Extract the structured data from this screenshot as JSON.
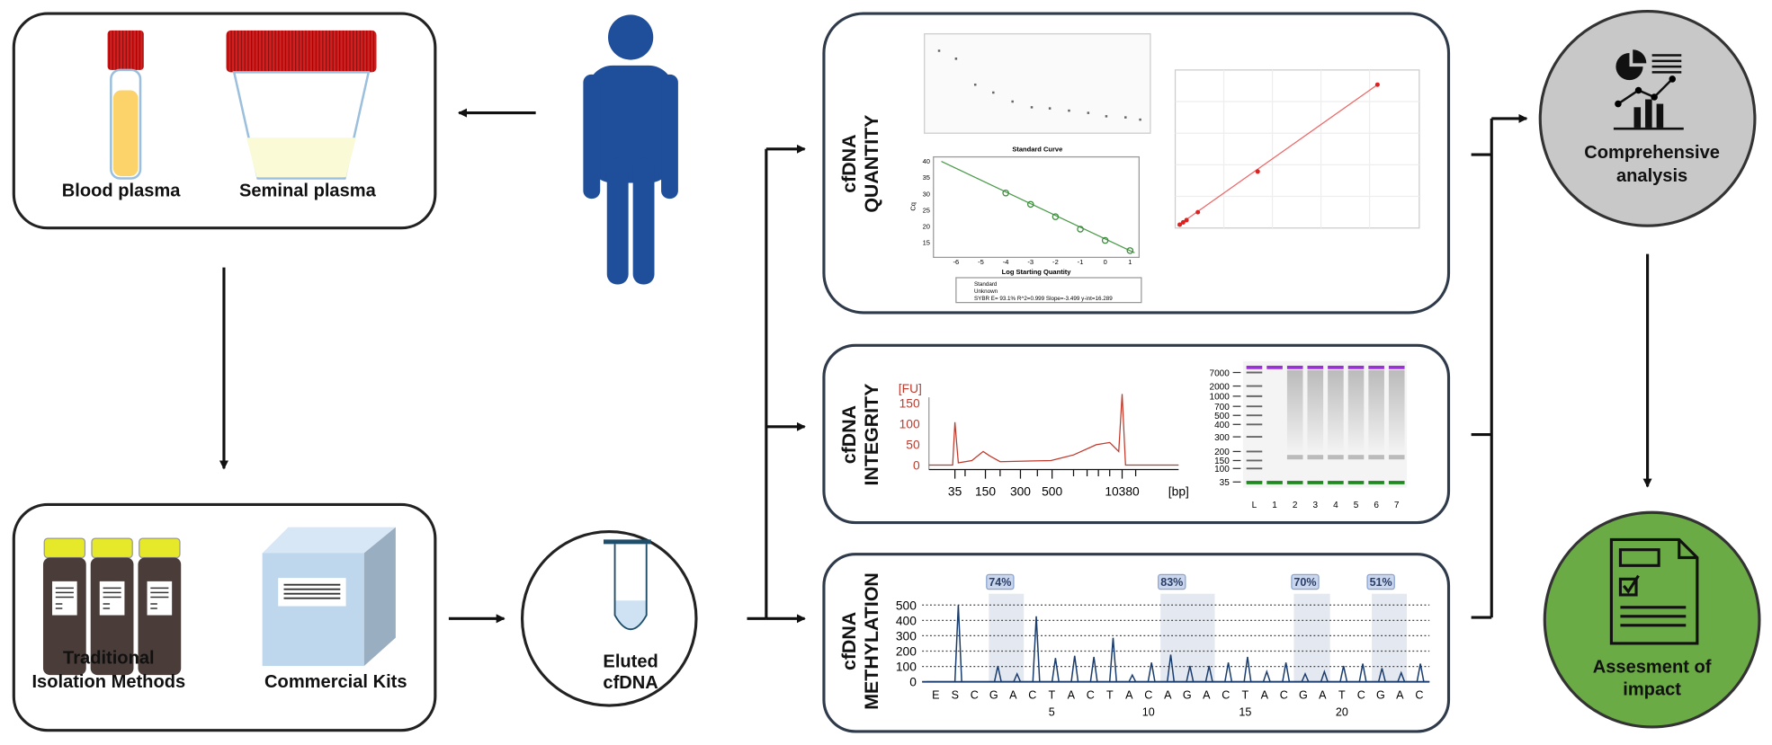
{
  "sample_box": {
    "labels": [
      "Blood plasma",
      "Seminal plasma"
    ]
  },
  "isolation_box": {
    "traditional": [
      "Traditional",
      "Isolation Methods"
    ],
    "commercial": "Commercial Kits"
  },
  "eluted": [
    "Eluted",
    "cfDNA"
  ],
  "quantity": {
    "label": [
      "cfDNA",
      "QUANTITY"
    ],
    "curve_title": "Standard Curve",
    "x_label": "Log Starting Quantity",
    "y_label": "Cq",
    "x_ticks": [
      "-6",
      "-5",
      "-4",
      "-3",
      "-2",
      "-1",
      "0",
      "1"
    ],
    "y_ticks": [
      "40",
      "35",
      "30",
      "25",
      "20",
      "15"
    ],
    "legend": [
      "Standard",
      "Unknown",
      "SYBR    E= 93.1% R^2=0.999 Slope=-3.499 y-int=16.289"
    ]
  },
  "integrity": {
    "label": [
      "cfDNA",
      "INTEGRITY"
    ],
    "unit": "[FU]",
    "y_ticks": [
      "0",
      "50",
      "100",
      "150"
    ],
    "x_ticks": [
      "35",
      "150",
      "300",
      "500",
      "10380"
    ],
    "x_unit": "[bp]",
    "ladder": [
      "7000",
      "2000",
      "1000",
      "700",
      "500",
      "400",
      "300",
      "200",
      "150",
      "100",
      "35"
    ],
    "lanes": [
      "L",
      "1",
      "2",
      "3",
      "4",
      "5",
      "6",
      "7"
    ]
  },
  "methylation": {
    "label": [
      "cfDNA",
      "METHYLATION"
    ],
    "y_ticks": [
      "500",
      "400",
      "300",
      "200",
      "100",
      "0"
    ],
    "sequence": [
      "E",
      "S",
      "C",
      "G",
      "A",
      "C",
      "T",
      "A",
      "C",
      "T",
      "A",
      "C",
      "A",
      "G",
      "A",
      "C",
      "T",
      "A",
      "C",
      "G",
      "A",
      "T",
      "C",
      "G",
      "A",
      "C"
    ],
    "positions": [
      "5",
      "10",
      "15",
      "20"
    ],
    "percents": [
      "74%",
      "83%",
      "70%",
      "51%"
    ]
  },
  "outputs": {
    "analysis": [
      "Comprehensive",
      "analysis"
    ],
    "impact": [
      "Assesment of",
      "impact"
    ]
  }
}
